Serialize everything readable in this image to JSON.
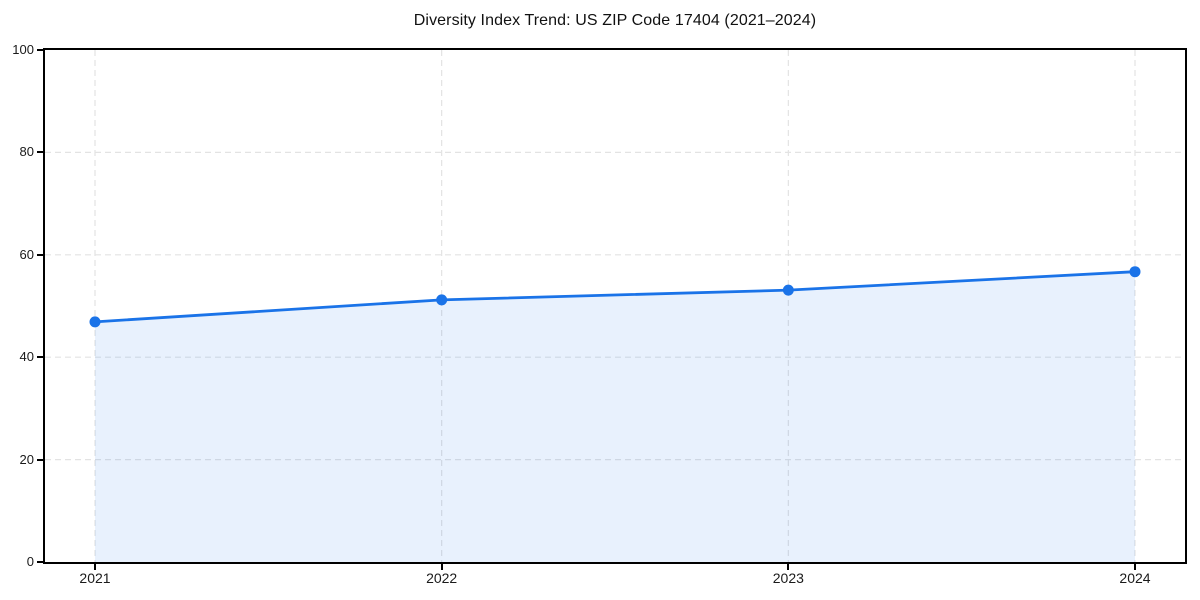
{
  "chart_data": {
    "type": "line",
    "title": "Diversity Index Trend: US ZIP Code 17404 (2021–2024)",
    "x": [
      "2021",
      "2022",
      "2023",
      "2024"
    ],
    "series": [
      {
        "name": "Diversity Index",
        "values": [
          46.9,
          51.2,
          53.1,
          56.7
        ]
      }
    ],
    "xlabel": "",
    "ylabel": "",
    "ylim": [
      0,
      100
    ],
    "y_ticks": [
      0,
      20,
      40,
      60,
      80,
      100
    ],
    "grid": "dashed-both-axes",
    "legend_position": "none",
    "area_fill": true,
    "marker": "circle",
    "colors": {
      "line": "#1a73e8",
      "marker": "#1a73e8",
      "fill": "#1a73e8",
      "grid": "#e3e3e3",
      "axis": "#000000",
      "text": "#1a1a1a",
      "background": "#ffffff"
    },
    "fill_opacity": 0.1
  }
}
